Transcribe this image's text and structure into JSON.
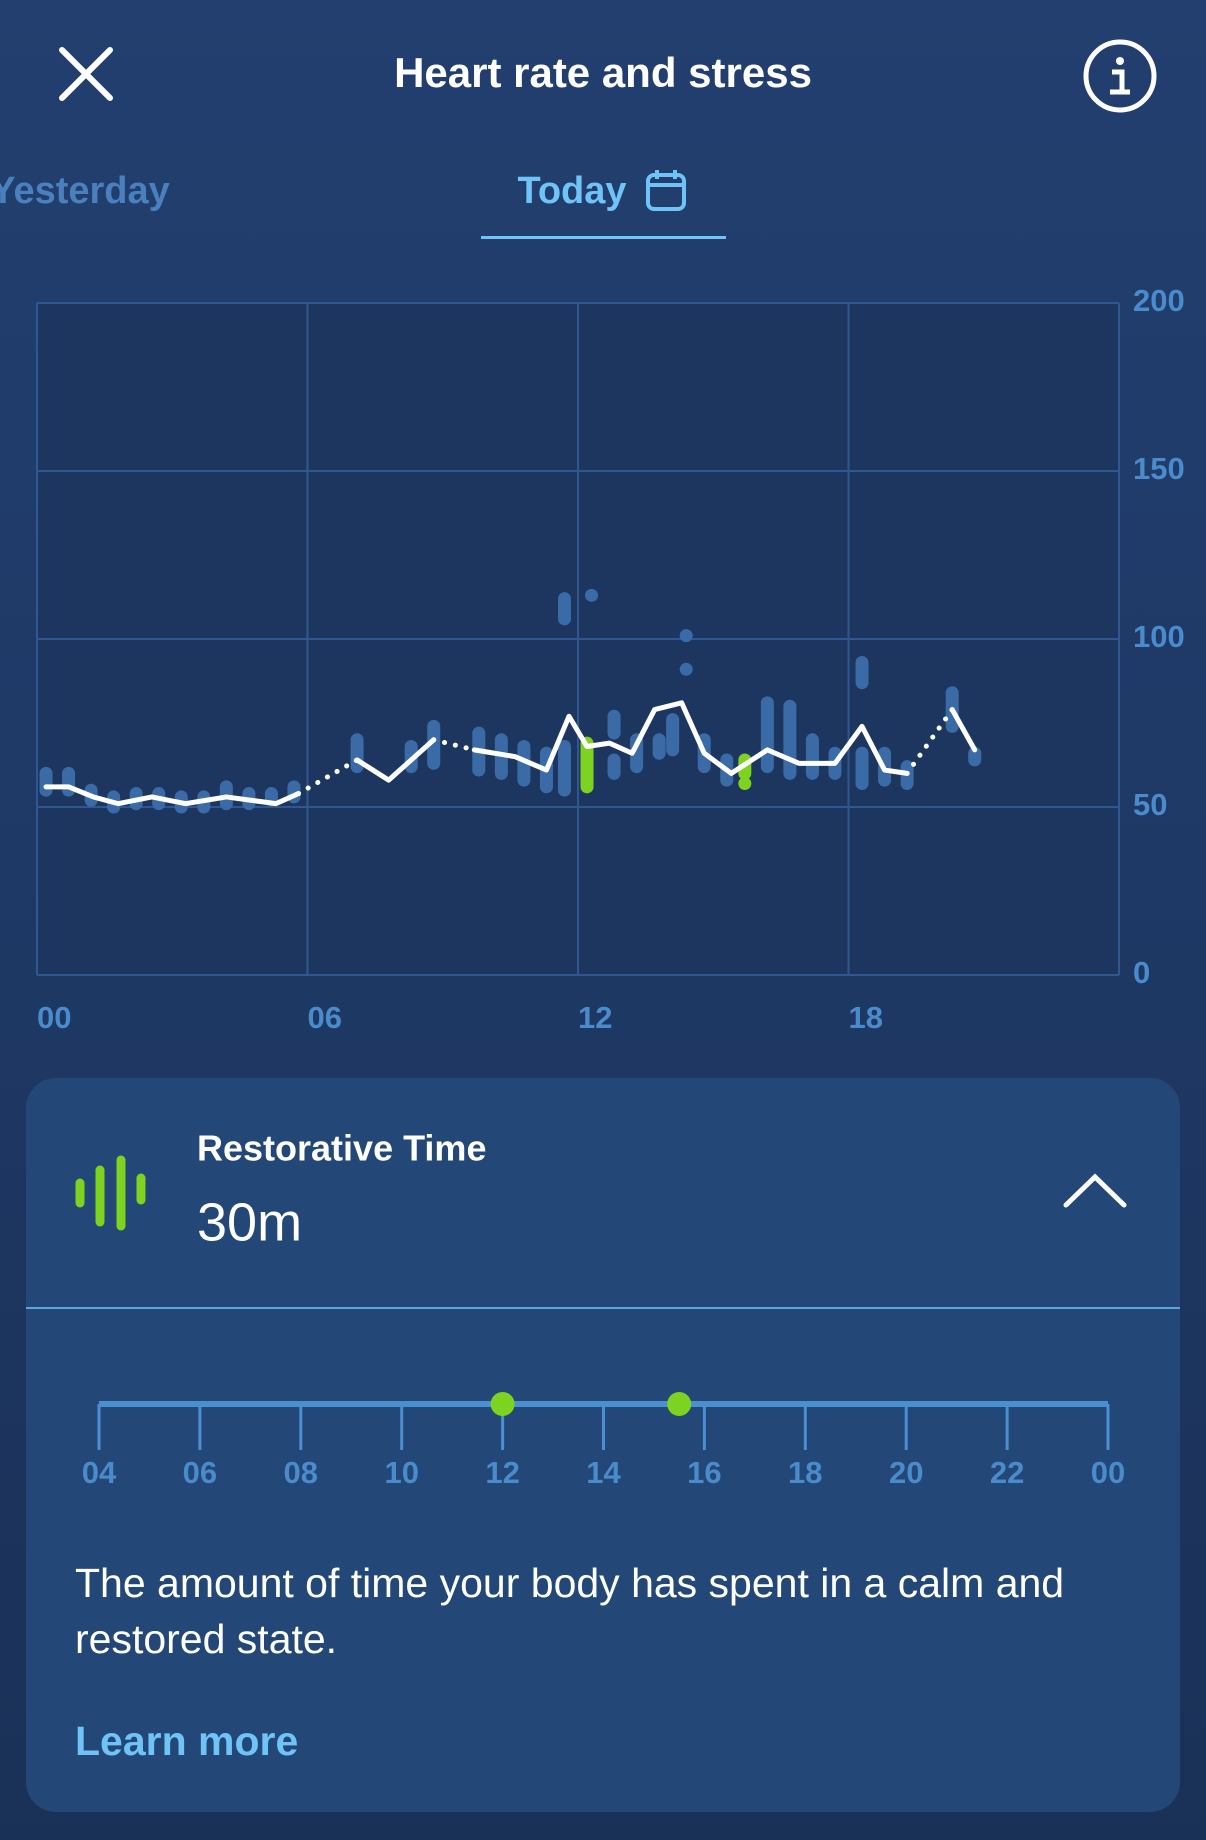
{
  "header": {
    "title": "Heart rate and stress"
  },
  "tabs": [
    {
      "label": "Yesterday"
    },
    {
      "label": "Today"
    }
  ],
  "chart_data": [
    {
      "type": "line",
      "xlim": [
        0,
        24
      ],
      "xticks": [
        {
          "value": 0,
          "label": "00"
        },
        {
          "value": 6,
          "label": "06"
        },
        {
          "value": 12,
          "label": "12"
        },
        {
          "value": 18,
          "label": "18"
        }
      ],
      "ylim": [
        0,
        200
      ],
      "yticks": [
        0,
        50,
        100,
        150,
        200
      ],
      "grid": true,
      "y_axis_side": "right",
      "ranges": [
        {
          "color": "#3b6ba6",
          "x": [
            0.2,
            0.7,
            1.2,
            1.7,
            2.2,
            2.7,
            3.2,
            3.7,
            4.2,
            4.7,
            5.2,
            5.7,
            7.1,
            8.3,
            8.8,
            9.8,
            10.3,
            10.8,
            11.3,
            11.7,
            11.7,
            12.3,
            12.8,
            12.8,
            13.3,
            13.8,
            14.1,
            14.4,
            14.4,
            14.8,
            15.3,
            16.2,
            16.7,
            17.2,
            17.7,
            18.3,
            18.3,
            18.8,
            19.3,
            20.3,
            20.8
          ],
          "low": [
            55,
            55,
            52,
            50,
            51,
            51,
            50,
            50,
            51,
            51,
            52,
            53,
            62,
            62,
            63,
            61,
            60,
            58,
            56,
            55,
            106,
            113,
            60,
            72,
            62,
            66,
            67,
            101,
            91,
            62,
            58,
            62,
            60,
            60,
            60,
            57,
            87,
            58,
            57,
            74,
            64
          ],
          "high": [
            60,
            60,
            55,
            53,
            54,
            54,
            53,
            53,
            56,
            54,
            54,
            56,
            70,
            68,
            74,
            72,
            70,
            68,
            66,
            68,
            112,
            113,
            64,
            77,
            70,
            70,
            76,
            101,
            91,
            70,
            64,
            81,
            80,
            70,
            66,
            66,
            93,
            66,
            62,
            84,
            66
          ]
        },
        {
          "color": "#7ed321",
          "x": [
            12.2,
            15.7,
            15.7
          ],
          "low": [
            56,
            57,
            60
          ],
          "high": [
            69,
            57,
            64
          ]
        }
      ],
      "series": [
        {
          "color": "#ffffff",
          "style": "solid",
          "x": [
            0.2,
            0.7,
            1.25,
            1.8,
            2.55,
            3.3,
            4.2,
            5.3,
            5.8,
            6.45,
            7.1,
            7.8,
            8.8,
            9.25,
            9.7,
            10.6,
            11.3,
            11.8,
            12.2,
            12.7,
            13.2,
            13.7,
            14.3,
            14.8,
            15.4,
            16.2,
            16.9,
            17.7,
            18.3,
            18.8,
            19.3,
            19.8,
            20.3,
            20.8
          ],
          "values": [
            56,
            56,
            53,
            51,
            53,
            51,
            53,
            51,
            54,
            null,
            64,
            58,
            70,
            null,
            67,
            65,
            61,
            77,
            68,
            69,
            66,
            79,
            81,
            66,
            60,
            67,
            63,
            63,
            74,
            61,
            60,
            null,
            79,
            67
          ]
        },
        {
          "color": "#ffffff",
          "style": "dotted",
          "x": [
            5.8,
            7.1,
            8.0,
            8.8,
            9.7,
            15.0,
            19.3,
            20.3
          ],
          "values": [
            54,
            64,
            null,
            70,
            67,
            null,
            60,
            79
          ]
        }
      ]
    },
    {
      "type": "timeline",
      "xlim": [
        4,
        24
      ],
      "xticks": [
        {
          "value": 4,
          "label": "04"
        },
        {
          "value": 6,
          "label": "06"
        },
        {
          "value": 8,
          "label": "08"
        },
        10,
        12,
        14,
        16,
        18,
        20,
        22,
        {
          "value": 24,
          "label": "00"
        }
      ],
      "points": {
        "color": "#7ed321",
        "x": [
          12,
          15.5
        ]
      }
    }
  ],
  "card": {
    "title": "Restorative Time",
    "value": "30m",
    "description": "The amount of time your body has spent in a calm and restored state.",
    "link": "Learn more"
  }
}
